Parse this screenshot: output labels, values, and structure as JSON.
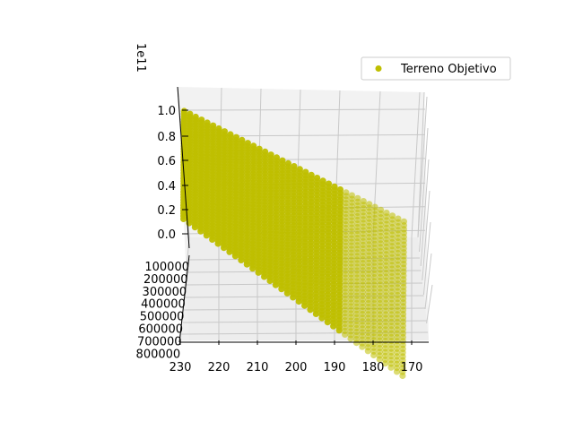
{
  "chart_data": {
    "type": "scatter3d",
    "title": "",
    "series": [
      {
        "name": "Terreno Objetivo",
        "color": "#bfbf00"
      }
    ],
    "legend": {
      "label": "Terreno Objetivo",
      "placement": "top-right"
    },
    "z_axis": {
      "offset_label": "1e11",
      "ticks": [
        "0.0",
        "0.2",
        "0.4",
        "0.6",
        "0.8",
        "1.0"
      ],
      "lim": [
        -0.1,
        1.15
      ]
    },
    "y_axis": {
      "ticks": [
        "100000",
        "200000",
        "300000",
        "400000",
        "500000",
        "600000",
        "700000",
        "800000"
      ],
      "lim": [
        0,
        800000
      ]
    },
    "x_axis": {
      "ticks": [
        "230",
        "220",
        "210",
        "200",
        "190",
        "180",
        "170"
      ],
      "lim": [
        167,
        232
      ]
    },
    "grid": true,
    "data_description": {
      "x_start": 229,
      "x_end": 172,
      "x_step": -1.5,
      "z_peak_start": 1.0,
      "z_peak_end": 0.1,
      "y_range": [
        0,
        600000
      ]
    }
  }
}
